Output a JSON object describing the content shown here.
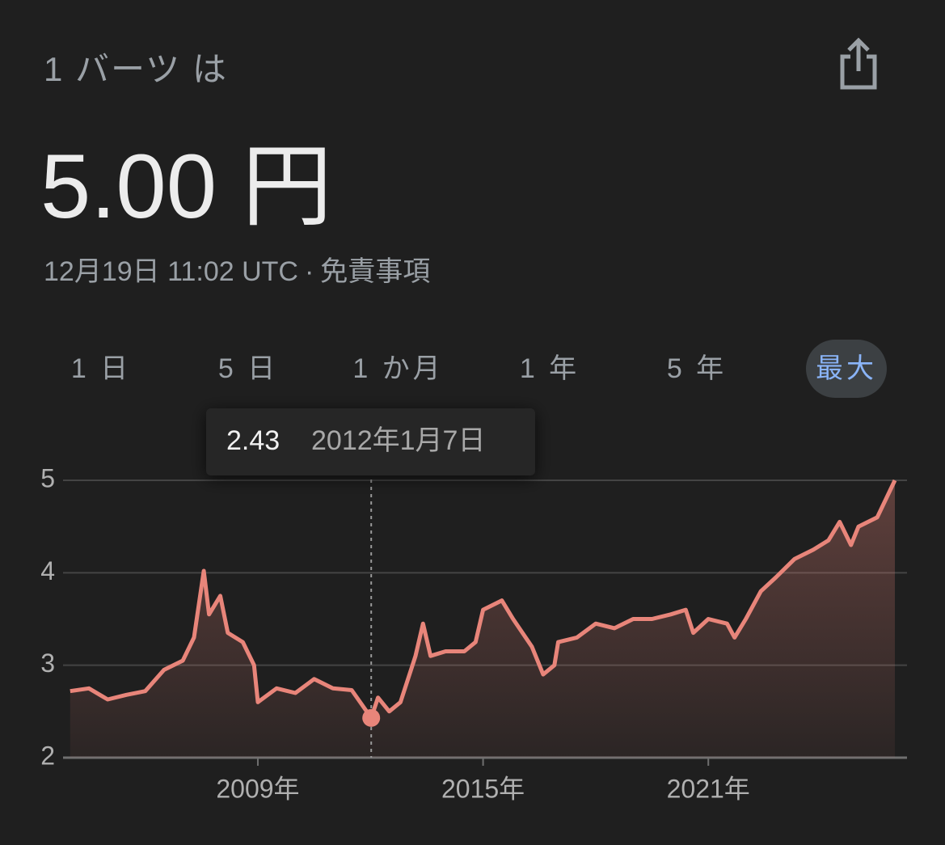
{
  "header": {
    "label": "1 バーツ は",
    "price": "5.00 円",
    "timestamp": "12月19日 11:02 UTC",
    "separator": "·",
    "disclaimer": "免責事項"
  },
  "tabs": [
    {
      "label": "1 日"
    },
    {
      "label": "5 日"
    },
    {
      "label": "1 か月"
    },
    {
      "label": "1 年"
    },
    {
      "label": "5 年"
    },
    {
      "label": "最大",
      "selected": true
    }
  ],
  "chart_data": {
    "type": "area",
    "x": [
      2004.0,
      2004.5,
      2005.0,
      2005.5,
      2006.0,
      2006.5,
      2007.0,
      2007.3,
      2007.56,
      2007.7,
      2008.0,
      2008.2,
      2008.6,
      2008.9,
      2009.0,
      2009.5,
      2010.0,
      2010.5,
      2011.0,
      2011.5,
      2012.02,
      2012.2,
      2012.5,
      2012.8,
      2013.2,
      2013.4,
      2013.6,
      2014.0,
      2014.5,
      2014.8,
      2015.0,
      2015.5,
      2015.8,
      2016.3,
      2016.6,
      2016.9,
      2017.0,
      2017.5,
      2018.0,
      2018.5,
      2019.0,
      2019.5,
      2020.0,
      2020.4,
      2020.6,
      2021.0,
      2021.5,
      2021.7,
      2022.0,
      2022.4,
      2022.8,
      2023.3,
      2023.8,
      2024.2,
      2024.5,
      2024.8,
      2025.0,
      2025.5,
      2025.97
    ],
    "values": [
      2.72,
      2.75,
      2.63,
      2.68,
      2.72,
      2.95,
      3.05,
      3.3,
      4.02,
      3.55,
      3.75,
      3.35,
      3.25,
      3.0,
      2.6,
      2.75,
      2.7,
      2.85,
      2.75,
      2.73,
      2.43,
      2.65,
      2.5,
      2.6,
      3.1,
      3.45,
      3.1,
      3.15,
      3.15,
      3.25,
      3.6,
      3.7,
      3.5,
      3.2,
      2.9,
      3.0,
      3.25,
      3.3,
      3.45,
      3.4,
      3.5,
      3.5,
      3.55,
      3.6,
      3.35,
      3.5,
      3.45,
      3.3,
      3.5,
      3.8,
      3.95,
      4.15,
      4.25,
      4.35,
      4.55,
      4.3,
      4.5,
      4.6,
      5.0
    ],
    "color": "#e8857a",
    "xlim": [
      2003.94,
      2025.97
    ],
    "xticks": [
      {
        "value": 2009,
        "label": "2009年"
      },
      {
        "value": 2015,
        "label": "2015年"
      },
      {
        "value": 2021,
        "label": "2021年"
      }
    ],
    "ylim": [
      2,
      5
    ],
    "yticks": [
      2,
      3,
      4,
      5
    ],
    "grid": true,
    "highlight": {
      "x": 2012.02,
      "value": 2.43,
      "label": "2012年1月7日"
    }
  }
}
